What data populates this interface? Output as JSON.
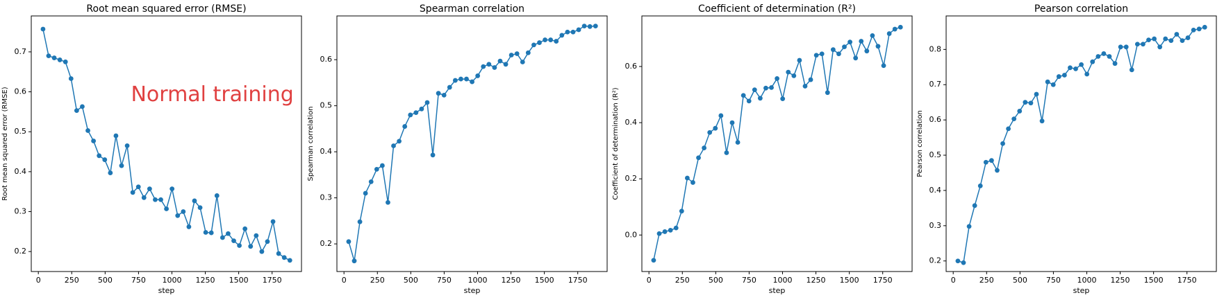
{
  "chart_data": [
    {
      "type": "line",
      "title": "Root mean squared error (RMSE)",
      "xlabel": "step",
      "ylabel": "Root mean squared error (RMSE)",
      "annotation": "Normal training",
      "annotation_color": "#e04040",
      "x": [
        35,
        77,
        119,
        161,
        203,
        245,
        287,
        329,
        371,
        413,
        455,
        497,
        539,
        581,
        623,
        665,
        707,
        749,
        791,
        833,
        875,
        917,
        959,
        1001,
        1043,
        1085,
        1127,
        1169,
        1211,
        1253,
        1295,
        1337,
        1379,
        1421,
        1463,
        1505,
        1547,
        1589,
        1631,
        1673,
        1715,
        1757,
        1799,
        1841,
        1883
      ],
      "series": [
        {
          "name": "RMSE",
          "color": "#1f77b4",
          "values": [
            0.757,
            0.69,
            0.685,
            0.68,
            0.675,
            0.633,
            0.553,
            0.563,
            0.503,
            0.477,
            0.44,
            0.43,
            0.397,
            0.49,
            0.415,
            0.465,
            0.348,
            0.362,
            0.335,
            0.357,
            0.33,
            0.33,
            0.307,
            0.357,
            0.29,
            0.3,
            0.262,
            0.327,
            0.31,
            0.248,
            0.247,
            0.34,
            0.235,
            0.245,
            0.227,
            0.215,
            0.257,
            0.213,
            0.24,
            0.2,
            0.225,
            0.275,
            0.195,
            0.185,
            0.178
          ]
        }
      ],
      "xlim": [
        -53,
        1970
      ],
      "ylim": [
        0.15,
        0.79
      ],
      "xticks": [
        0,
        250,
        500,
        750,
        1000,
        1250,
        1500,
        1750
      ],
      "yticks": [
        0.2,
        0.3,
        0.4,
        0.5,
        0.6,
        0.7
      ]
    },
    {
      "type": "line",
      "title": "Spearman correlation",
      "xlabel": "step",
      "ylabel": "Spearman correlation",
      "x": [
        35,
        77,
        119,
        161,
        203,
        245,
        287,
        329,
        371,
        413,
        455,
        497,
        539,
        581,
        623,
        665,
        707,
        749,
        791,
        833,
        875,
        917,
        959,
        1001,
        1043,
        1085,
        1127,
        1169,
        1211,
        1253,
        1295,
        1337,
        1379,
        1421,
        1463,
        1505,
        1547,
        1589,
        1631,
        1673,
        1715,
        1757,
        1799,
        1841,
        1883
      ],
      "series": [
        {
          "name": "Spearman",
          "color": "#1f77b4",
          "values": [
            0.205,
            0.163,
            0.248,
            0.31,
            0.335,
            0.362,
            0.37,
            0.29,
            0.413,
            0.423,
            0.455,
            0.48,
            0.485,
            0.493,
            0.507,
            0.393,
            0.527,
            0.523,
            0.54,
            0.555,
            0.558,
            0.558,
            0.552,
            0.565,
            0.585,
            0.59,
            0.583,
            0.597,
            0.59,
            0.61,
            0.613,
            0.595,
            0.615,
            0.632,
            0.637,
            0.643,
            0.643,
            0.64,
            0.653,
            0.66,
            0.66,
            0.665,
            0.673,
            0.672,
            0.673
          ]
        }
      ],
      "xlim": [
        -53,
        1970
      ],
      "ylim": [
        0.14,
        0.695
      ],
      "xticks": [
        0,
        250,
        500,
        750,
        1000,
        1250,
        1500,
        1750
      ],
      "yticks": [
        0.2,
        0.3,
        0.4,
        0.5,
        0.6
      ]
    },
    {
      "type": "line",
      "title": "Coefficient of determination (R²)",
      "xlabel": "step",
      "ylabel": "Coefficient of determination (R²)",
      "x": [
        35,
        77,
        119,
        161,
        203,
        245,
        287,
        329,
        371,
        413,
        455,
        497,
        539,
        581,
        623,
        665,
        707,
        749,
        791,
        833,
        875,
        917,
        959,
        1001,
        1043,
        1085,
        1127,
        1169,
        1211,
        1253,
        1295,
        1337,
        1379,
        1421,
        1463,
        1505,
        1547,
        1589,
        1631,
        1673,
        1715,
        1757,
        1799,
        1841,
        1883
      ],
      "series": [
        {
          "name": "R2",
          "color": "#1f77b4",
          "values": [
            -0.09,
            0.005,
            0.012,
            0.017,
            0.025,
            0.085,
            0.203,
            0.187,
            0.275,
            0.31,
            0.365,
            0.38,
            0.425,
            0.293,
            0.4,
            0.33,
            0.497,
            0.477,
            0.517,
            0.487,
            0.523,
            0.525,
            0.557,
            0.485,
            0.58,
            0.567,
            0.622,
            0.53,
            0.553,
            0.64,
            0.645,
            0.507,
            0.66,
            0.645,
            0.67,
            0.687,
            0.63,
            0.69,
            0.655,
            0.71,
            0.672,
            0.603,
            0.717,
            0.733,
            0.74
          ]
        }
      ],
      "xlim": [
        -53,
        1970
      ],
      "ylim": [
        -0.13,
        0.78
      ],
      "xticks": [
        0,
        250,
        500,
        750,
        1000,
        1250,
        1500,
        1750
      ],
      "yticks": [
        {
          "value": 0,
          "label": "0.0"
        },
        0.2,
        0.4,
        0.6
      ]
    },
    {
      "type": "line",
      "title": "Pearson correlation",
      "xlabel": "step",
      "ylabel": "Pearson correlation",
      "x": [
        35,
        77,
        119,
        161,
        203,
        245,
        287,
        329,
        371,
        413,
        455,
        497,
        539,
        581,
        623,
        665,
        707,
        749,
        791,
        833,
        875,
        917,
        959,
        1001,
        1043,
        1085,
        1127,
        1169,
        1211,
        1253,
        1295,
        1337,
        1379,
        1421,
        1463,
        1505,
        1547,
        1589,
        1631,
        1673,
        1715,
        1757,
        1799,
        1841,
        1883
      ],
      "series": [
        {
          "name": "Pearson",
          "color": "#1f77b4",
          "values": [
            0.2,
            0.195,
            0.298,
            0.357,
            0.413,
            0.48,
            0.485,
            0.457,
            0.533,
            0.575,
            0.603,
            0.625,
            0.65,
            0.648,
            0.673,
            0.597,
            0.708,
            0.7,
            0.723,
            0.727,
            0.748,
            0.745,
            0.757,
            0.73,
            0.765,
            0.78,
            0.788,
            0.78,
            0.76,
            0.807,
            0.807,
            0.742,
            0.815,
            0.815,
            0.827,
            0.83,
            0.807,
            0.83,
            0.825,
            0.843,
            0.825,
            0.833,
            0.855,
            0.858,
            0.863
          ]
        }
      ],
      "xlim": [
        -53,
        1970
      ],
      "ylim": [
        0.17,
        0.895
      ],
      "xticks": [
        0,
        250,
        500,
        750,
        1000,
        1250,
        1500,
        1750
      ],
      "yticks": [
        0.2,
        0.3,
        0.4,
        0.5,
        0.6,
        0.7,
        0.8
      ]
    }
  ]
}
